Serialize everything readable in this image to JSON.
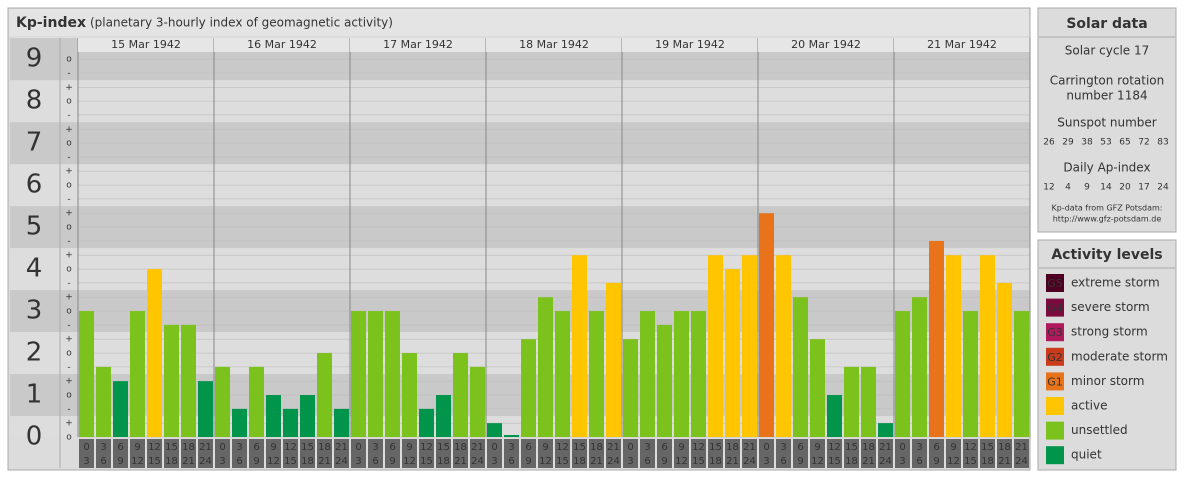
{
  "chart_data": {
    "type": "bar",
    "title": "Kp-index",
    "subtitle": "(planetary 3-hourly index of geomagnetic activity)",
    "ylim": [
      0,
      9.17
    ],
    "yticks": [
      0,
      1,
      2,
      3,
      4,
      5,
      6,
      7,
      8,
      9
    ],
    "yticks_minor": [
      {
        "value": 0,
        "label": "o"
      },
      {
        "value": 0.33,
        "label": "+"
      },
      {
        "value": 0.67,
        "label": "-"
      },
      {
        "value": 1,
        "label": "o"
      },
      {
        "value": 1.33,
        "label": "+"
      },
      {
        "value": 1.67,
        "label": "-"
      },
      {
        "value": 2,
        "label": "o"
      },
      {
        "value": 2.33,
        "label": "+"
      },
      {
        "value": 2.67,
        "label": "-"
      },
      {
        "value": 3,
        "label": "o"
      },
      {
        "value": 3.33,
        "label": "+"
      },
      {
        "value": 3.67,
        "label": "-"
      },
      {
        "value": 4,
        "label": "o"
      },
      {
        "value": 4.33,
        "label": "+"
      },
      {
        "value": 4.67,
        "label": "-"
      },
      {
        "value": 5,
        "label": "o"
      },
      {
        "value": 5.33,
        "label": "+"
      },
      {
        "value": 5.67,
        "label": "-"
      },
      {
        "value": 6,
        "label": "o"
      },
      {
        "value": 6.33,
        "label": "+"
      },
      {
        "value": 6.67,
        "label": "-"
      },
      {
        "value": 7,
        "label": "o"
      },
      {
        "value": 7.33,
        "label": "+"
      },
      {
        "value": 7.67,
        "label": "-"
      },
      {
        "value": 8,
        "label": "o"
      },
      {
        "value": 8.33,
        "label": "+"
      },
      {
        "value": 8.67,
        "label": "-"
      },
      {
        "value": 9,
        "label": "o"
      }
    ],
    "hours": [
      "0",
      "3",
      "6",
      "9",
      "12",
      "15",
      "18",
      "21"
    ],
    "hours_end": [
      "3",
      "6",
      "9",
      "12",
      "15",
      "18",
      "21",
      "24"
    ],
    "days": [
      {
        "date": "15 Mar 1942",
        "values": [
          3,
          1.67,
          1.33,
          3,
          4,
          2.67,
          2.67,
          1.33
        ],
        "colors": [
          "#7cc21c",
          "#7cc21c",
          "#00954a",
          "#7cc21c",
          "#ffc600",
          "#7cc21c",
          "#7cc21c",
          "#00954a"
        ]
      },
      {
        "date": "16 Mar 1942",
        "values": [
          1.67,
          0.67,
          1.67,
          1,
          0.67,
          1,
          2,
          0.67
        ],
        "colors": [
          "#7cc21c",
          "#00954a",
          "#7cc21c",
          "#00954a",
          "#00954a",
          "#00954a",
          "#7cc21c",
          "#00954a"
        ]
      },
      {
        "date": "17 Mar 1942",
        "values": [
          3,
          3,
          3,
          2,
          0.67,
          1,
          2,
          1.67
        ],
        "colors": [
          "#7cc21c",
          "#7cc21c",
          "#7cc21c",
          "#7cc21c",
          "#00954a",
          "#00954a",
          "#7cc21c",
          "#7cc21c"
        ]
      },
      {
        "date": "18 Mar 1942",
        "values": [
          0.33,
          0,
          2.33,
          3.33,
          3,
          4.33,
          3,
          3.67
        ],
        "colors": [
          "#00954a",
          "#00954a",
          "#7cc21c",
          "#7cc21c",
          "#7cc21c",
          "#ffc600",
          "#7cc21c",
          "#ffc600"
        ]
      },
      {
        "date": "19 Mar 1942",
        "values": [
          2.33,
          3,
          2.67,
          3,
          3,
          4.33,
          4,
          4.33
        ],
        "colors": [
          "#7cc21c",
          "#7cc21c",
          "#7cc21c",
          "#7cc21c",
          "#7cc21c",
          "#ffc600",
          "#ffc600",
          "#ffc600"
        ]
      },
      {
        "date": "20 Mar 1942",
        "values": [
          5.33,
          4.33,
          3.33,
          2.33,
          1,
          1.67,
          1.67,
          0.33
        ],
        "colors": [
          "#e8731a",
          "#ffc600",
          "#7cc21c",
          "#7cc21c",
          "#00954a",
          "#7cc21c",
          "#7cc21c",
          "#00954a"
        ]
      },
      {
        "date": "21 Mar 1942",
        "values": [
          3,
          3.33,
          4.67,
          4.33,
          3,
          4.33,
          3.67,
          3
        ],
        "colors": [
          "#7cc21c",
          "#7cc21c",
          "#e8731a",
          "#ffc600",
          "#7cc21c",
          "#ffc600",
          "#ffc600",
          "#7cc21c"
        ]
      }
    ]
  },
  "solar_data": {
    "title": "Solar data",
    "solar_cycle": "Solar cycle 17",
    "carrington_1": "Carrington rotation",
    "carrington_2": "number 1184",
    "sunspot_title": "Sunspot number",
    "sunspot": [
      26,
      29,
      38,
      53,
      65,
      72,
      83
    ],
    "ap_title": "Daily Ap-index",
    "ap": [
      12,
      4,
      9,
      14,
      20,
      17,
      24
    ],
    "source_1": "Kp-data from GFZ Potsdam:",
    "source_2": "http://www.gfz-potsdam.de"
  },
  "activity_levels": {
    "title": "Activity levels",
    "items": [
      {
        "badge": "G5",
        "label": "extreme storm",
        "color": "#4f0022"
      },
      {
        "badge": "G4",
        "label": "severe storm",
        "color": "#7c0a3f"
      },
      {
        "badge": "G3",
        "label": "strong storm",
        "color": "#b01a5c"
      },
      {
        "badge": "G2",
        "label": "moderate storm",
        "color": "#cc3a1c"
      },
      {
        "badge": "G1",
        "label": "minor storm",
        "color": "#e8731a"
      },
      {
        "badge": null,
        "label": "active",
        "color": "#ffc600"
      },
      {
        "badge": null,
        "label": "unsettled",
        "color": "#7cc21c"
      },
      {
        "badge": null,
        "label": "quiet",
        "color": "#00954a"
      }
    ]
  }
}
